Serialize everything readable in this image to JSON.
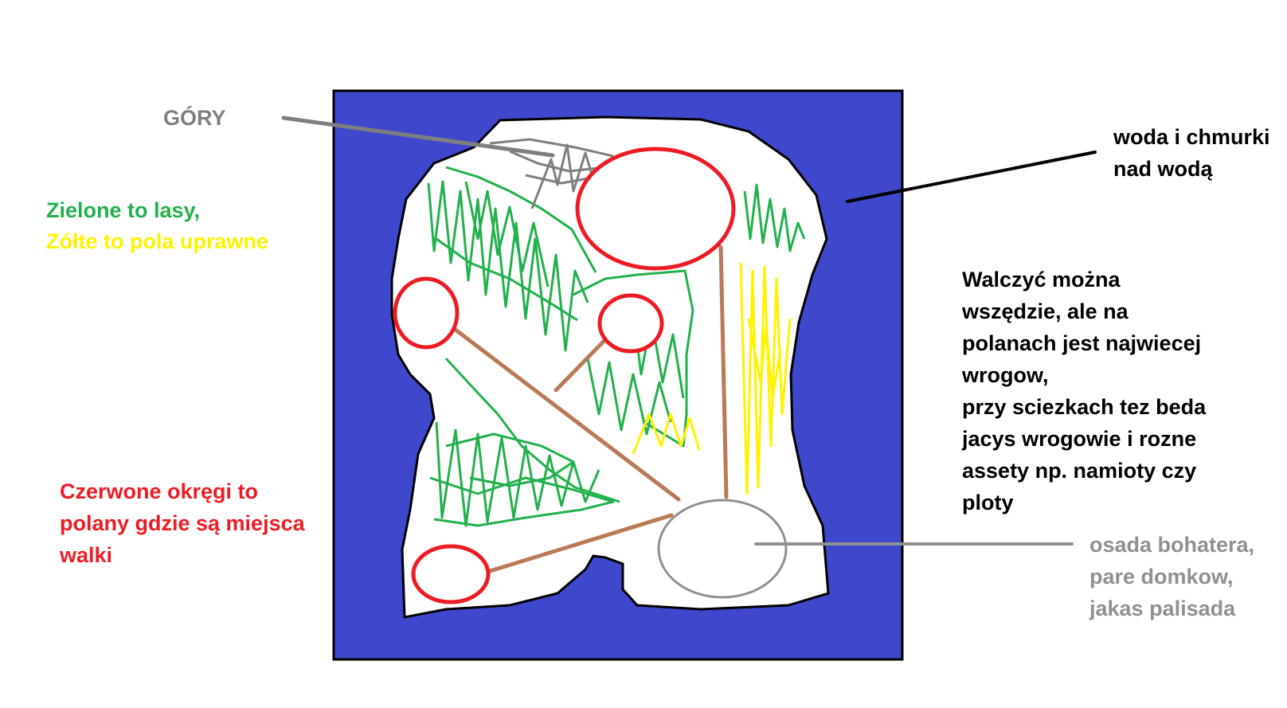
{
  "labels": {
    "mountains": "GÓRY",
    "water_lines": [
      "woda i chmurki",
      "nad wodą"
    ],
    "legend_forest": "Zielone to lasy,",
    "legend_fields": "Zółte to pola uprawne",
    "combat_lines": [
      "Walczyć można",
      "wszędzie, ale na",
      "polanach jest najwiecej",
      "wrogow,",
      "przy sciezkach tez beda",
      "jacys wrogowie i rozne",
      "assety np. namioty czy",
      "ploty"
    ],
    "clearings_lines": [
      "Czerwone okręgi to",
      "polany gdzie są miejsca",
      "walki"
    ],
    "village_lines": [
      "osada bohatera,",
      "pare domkow,",
      "jakas palisada"
    ]
  },
  "colors": {
    "water": "#3f48cc",
    "land": "#ffffff",
    "forest": "#22b14c",
    "fields": "#fff200",
    "clearing": "#ed1c24",
    "path": "#b97a57",
    "mountains": "#7f7f7f",
    "village": "#909090",
    "outline": "#000000",
    "mountains_text": "#7f7f7f",
    "water_text": "#000000",
    "forest_text": "#22b14c",
    "fields_text": "#fff200",
    "combat_text": "#000000",
    "clearings_text": "#ed1c24",
    "village_text": "#909090"
  },
  "icons": {
    "mountains": "mountains-scribble",
    "forest": "forest-scribble",
    "fields": "field-scribble",
    "clearing": "clearing-circle",
    "village": "village-circle",
    "path": "path-line"
  }
}
